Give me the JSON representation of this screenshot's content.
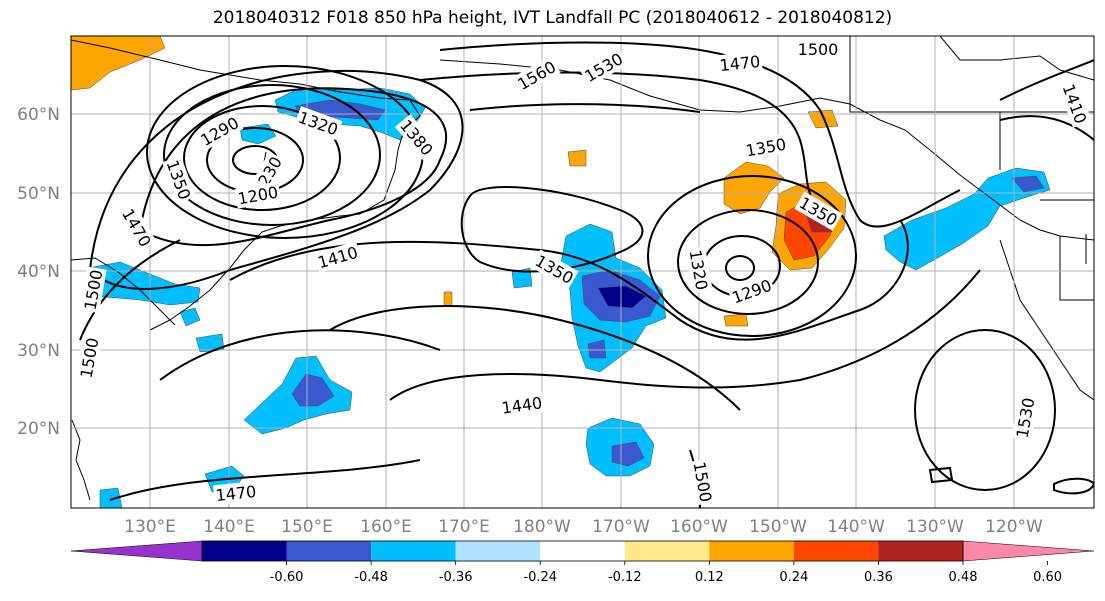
{
  "title": "2018040312 F018 850 hPa height, IVT Landfall PC (2018040612 - 2018040812)",
  "latitude_labels": [
    "60°N",
    "50°N",
    "40°N",
    "30°N",
    "20°N"
  ],
  "longitude_labels": [
    "130°E",
    "140°E",
    "150°E",
    "160°E",
    "170°E",
    "180°W",
    "170°W",
    "160°W",
    "150°W",
    "140°W",
    "130°W",
    "120°W"
  ],
  "colorbar": {
    "colors": [
      "#9932cc",
      "#00008b",
      "#3a58cf",
      "#00bfff",
      "#b0e0ff",
      "#ffffff",
      "#ffe98a",
      "#ffa500",
      "#ff4500",
      "#b22222",
      "#ff88aa"
    ],
    "tick_labels": [
      "-0.60",
      "-0.48",
      "-0.36",
      "-0.24",
      "-0.12",
      "0.12",
      "0.24",
      "0.36",
      "0.48",
      "0.60"
    ]
  },
  "height_contour_labels": [
    "1500",
    "1470",
    "1530",
    "1560",
    "1290",
    "1320",
    "1230",
    "1200",
    "1350",
    "1380",
    "1470",
    "1410",
    "1500",
    "1500",
    "1350",
    "1320",
    "1290",
    "1350",
    "1350",
    "1440",
    "1500",
    "1530",
    "1470",
    "1410"
  ],
  "fill_colors": {
    "neg_weak": "#00bfff",
    "neg_mid": "#3a58cf",
    "neg_strong": "#00008b",
    "pos_weak": "#ffa500",
    "pos_mid": "#ff4500",
    "pos_strong": "#b22222"
  }
}
